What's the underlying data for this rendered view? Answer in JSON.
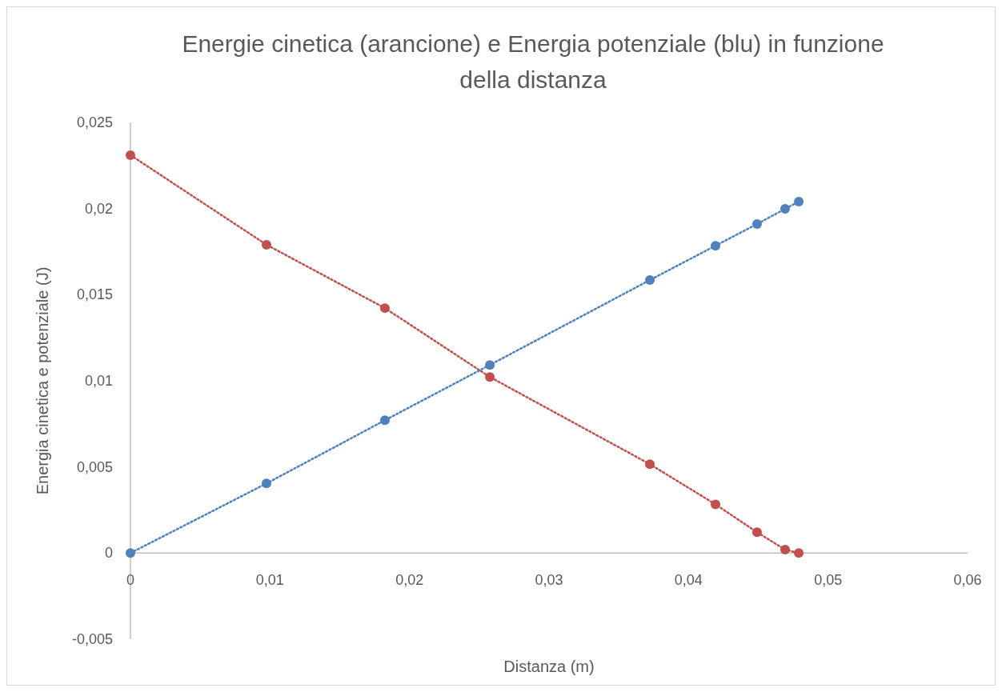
{
  "chart_data": {
    "type": "line",
    "title": "Energie cinetica (arancione) e Energia potenziale (blu) in funzione della distanza",
    "xlabel": "Distanza (m)",
    "ylabel": "Energia cinetica e potenziale (J)",
    "xlim": [
      0,
      0.06
    ],
    "xticks": [
      {
        "value": 0,
        "label": "0"
      },
      {
        "value": 0.01,
        "label": "0,01"
      },
      {
        "value": 0.02,
        "label": "0,02"
      },
      {
        "value": 0.03,
        "label": "0,03"
      },
      {
        "value": 0.04,
        "label": "0,04"
      },
      {
        "value": 0.05,
        "label": "0,05"
      },
      {
        "value": 0.06,
        "label": "0,06"
      }
    ],
    "ylim": [
      -0.005,
      0.025
    ],
    "yticks": [
      {
        "value": -0.005,
        "label": "-0,005"
      },
      {
        "value": 0,
        "label": "0"
      },
      {
        "value": 0.005,
        "label": "0,005"
      },
      {
        "value": 0.01,
        "label": "0,01"
      },
      {
        "value": 0.015,
        "label": "0,015"
      },
      {
        "value": 0.02,
        "label": "0,02"
      },
      {
        "value": 0.025,
        "label": "0,025"
      }
    ],
    "grid": false,
    "marker": "circle",
    "line_style": "dotted",
    "series": [
      {
        "color": "#c0504d",
        "x": [
          0,
          0.00975,
          0.01824,
          0.02576,
          0.03723,
          0.04193,
          0.04491,
          0.04692,
          0.0479
        ],
        "values": [
          0.0231,
          0.0179,
          0.01422,
          0.01022,
          0.00516,
          0.00283,
          0.00121,
          0.0002,
          0
        ]
      },
      {
        "color": "#4f81bd",
        "x": [
          0,
          0.00975,
          0.01824,
          0.02576,
          0.03723,
          0.04193,
          0.04491,
          0.04692,
          0.0479
        ],
        "values": [
          0,
          0.00404,
          0.00771,
          0.01092,
          0.01585,
          0.01784,
          0.0191,
          0.01998,
          0.0204
        ]
      }
    ]
  }
}
